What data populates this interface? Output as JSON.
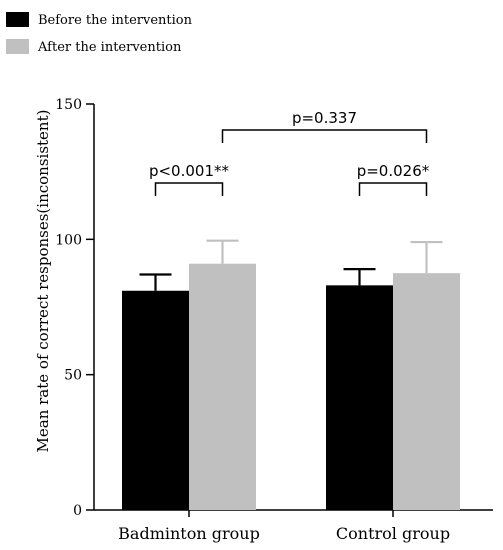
{
  "chart_data": {
    "type": "bar",
    "categories": [
      "Badminton group",
      "Control group"
    ],
    "series": [
      {
        "name": "Before the intervention",
        "values": [
          81,
          83
        ],
        "errors": [
          6,
          6
        ],
        "color": "#000000"
      },
      {
        "name": "After the intervention",
        "values": [
          91,
          87.5
        ],
        "errors": [
          8.5,
          11.5
        ],
        "color": "#c0c0c0"
      }
    ],
    "ylabel": "Mean rate of correct responses(inconsistent)",
    "xlabel": "",
    "ylim": [
      0,
      150
    ],
    "yticks": [
      0,
      50,
      100,
      150
    ],
    "legend_position": "top-left",
    "grid": false,
    "annotations": [
      {
        "text": "p<0.001**",
        "from": [
          "Badminton group",
          0
        ],
        "to": [
          "Badminton group",
          1
        ]
      },
      {
        "text": "p=0.026*",
        "from": [
          "Control group",
          0
        ],
        "to": [
          "Control group",
          1
        ]
      },
      {
        "text": "p=0.337",
        "from": [
          "Badminton group",
          1
        ],
        "to": [
          "Control group",
          1
        ]
      }
    ]
  }
}
